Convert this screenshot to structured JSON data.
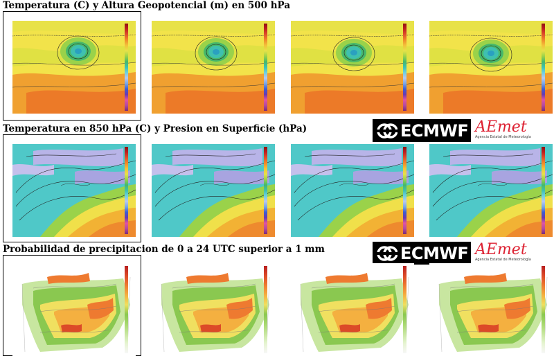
{
  "rows": [
    {
      "title": "Temperatura (C) y Altura Geopotencial (m) en 500 hPa",
      "kind": "t500"
    },
    {
      "title": "Temperatura en 850 hPa (C) y Presion en Superficie (hPa)",
      "kind": "t850"
    },
    {
      "title": "Probabilidad de precipitacion de 0 a 24 UTC superior a 1 mm",
      "kind": "prec"
    }
  ],
  "logos": {
    "ecmwf": "ECMWF",
    "aemet": "AEmet",
    "aemet_sub": "Agencia Estatal de Meteorología"
  },
  "icons": [
    "ecmwf-logo-icon",
    "aemet-logo-icon"
  ]
}
